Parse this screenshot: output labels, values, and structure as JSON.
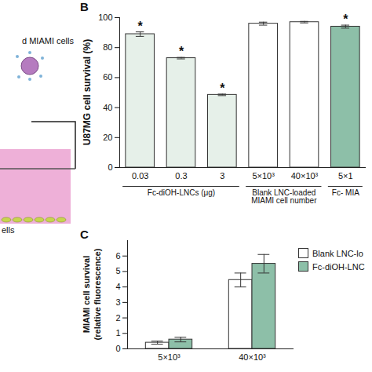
{
  "diagram": {
    "labels": [
      "d MIAMI cells",
      "ells"
    ]
  },
  "chart_data": [
    {
      "panel": "B",
      "type": "bar",
      "y_label": "U87MG cell survival (%)",
      "categories": [
        "0.03",
        "0.3",
        "3",
        "5×10³",
        "40×10³",
        "5×1"
      ],
      "category_groups": [
        "Fc-diOH-LNCs (μg)",
        "Fc-diOH-LNCs (μg)",
        "Fc-diOH-LNCs (μg)",
        "Blank LNC-loaded MIAMI cell number",
        "Blank LNC-loaded MIAMI cell number",
        "Fc- MIA"
      ],
      "values": [
        89,
        73,
        48.5,
        96,
        97,
        94
      ],
      "errors": [
        1.5,
        0.5,
        0.5,
        1,
        0.5,
        1
      ],
      "significance": [
        "*",
        "*",
        "*",
        null,
        null,
        "*"
      ],
      "colors": [
        "#e6f0e9",
        "#e6f0e9",
        "#e6f0e9",
        "#ffffff",
        "#ffffff",
        "#8dbfa8"
      ],
      "ylim": [
        0,
        100
      ],
      "yticks": [
        0,
        20,
        40,
        60,
        80,
        100
      ],
      "grid": false
    },
    {
      "panel": "C",
      "type": "bar",
      "y_label": "MIAMI cell survival (relative fluorescence)",
      "categories": [
        "5×10³",
        "40×10³"
      ],
      "series": [
        {
          "name": "Blank LNC-lo",
          "color": "#ffffff",
          "values": [
            0.4,
            4.45
          ],
          "errors": [
            0.1,
            0.45
          ]
        },
        {
          "name": "Fc-diOH-LNC",
          "color": "#8dbfa8",
          "values": [
            0.6,
            5.5
          ],
          "errors": [
            0.15,
            0.6
          ]
        }
      ],
      "ylim": [
        0,
        7
      ],
      "yticks": [
        0,
        1,
        2,
        3,
        4,
        5,
        6
      ],
      "grid": false,
      "legend": "right"
    }
  ]
}
